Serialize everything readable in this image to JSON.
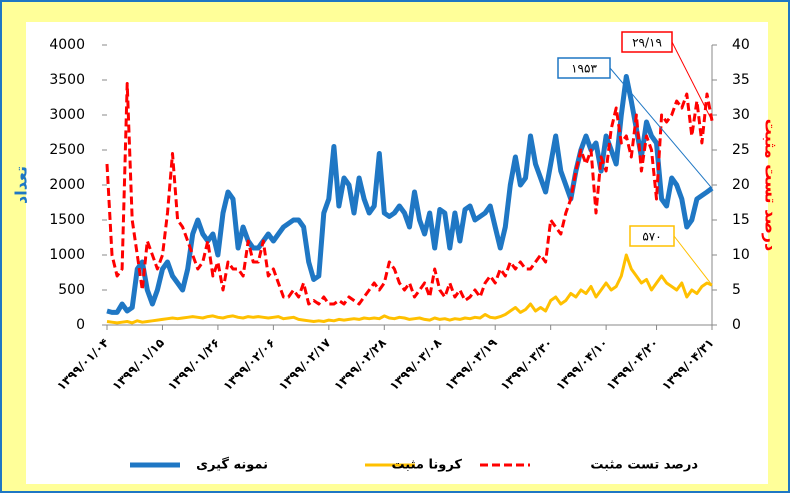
{
  "chart_data": {
    "type": "line",
    "y_label": "تعداد",
    "y2_label": "درصد تست مثبت",
    "categories": [
      "۱۳۹۹/۰۱/۰۴",
      null,
      null,
      null,
      null,
      null,
      null,
      null,
      null,
      null,
      null,
      "۱۳۹۹/۰۱/۱۵",
      null,
      null,
      null,
      null,
      null,
      null,
      null,
      null,
      null,
      null,
      "۱۳۹۹/۰۱/۲۶",
      null,
      null,
      null,
      null,
      null,
      null,
      null,
      null,
      null,
      null,
      "۱۳۹۹/۰۲/۰۶",
      null,
      null,
      null,
      null,
      null,
      null,
      null,
      null,
      null,
      null,
      "۱۳۹۹/۰۲/۱۷",
      null,
      null,
      null,
      null,
      null,
      null,
      null,
      null,
      null,
      null,
      "۱۳۹۹/۰۲/۲۸",
      null,
      null,
      null,
      null,
      null,
      null,
      null,
      null,
      null,
      null,
      "۱۳۹۹/۰۳/۰۸",
      null,
      null,
      null,
      null,
      null,
      null,
      null,
      null,
      null,
      null,
      "۱۳۹۹/۰۳/۱۹",
      null,
      null,
      null,
      null,
      null,
      null,
      null,
      null,
      null,
      null,
      "۱۳۹۹/۰۳/۳۰",
      null,
      null,
      null,
      null,
      null,
      null,
      null,
      null,
      null,
      null,
      "۱۳۹۹/۰۴/۱۰",
      null,
      null,
      null,
      null,
      null,
      null,
      null,
      null,
      null,
      "۱۳۹۹/۰۴/۲۰",
      null,
      null,
      null,
      null,
      null,
      null,
      null,
      null,
      null,
      null,
      "۱۳۹۹/۰۴/۳۱"
    ],
    "series": [
      {
        "name": "نمونه گیری",
        "color": "#1f77c4",
        "width": 5,
        "dash": false,
        "values": [
          200,
          180,
          180,
          300,
          200,
          250,
          800,
          900,
          500,
          300,
          500,
          800,
          900,
          700,
          600,
          500,
          800,
          1300,
          1500,
          1300,
          1200,
          1300,
          1000,
          1600,
          1900,
          1800,
          1100,
          1400,
          1200,
          1100,
          1100,
          1200,
          1300,
          1200,
          1300,
          1400,
          1450,
          1500,
          1500,
          1400,
          900,
          650,
          700,
          1600,
          1800,
          2550,
          1700,
          2100,
          2000,
          1600,
          2100,
          1800,
          1600,
          1700,
          2450,
          1600,
          1550,
          1600,
          1700,
          1600,
          1400,
          1900,
          1500,
          1300,
          1600,
          1100,
          1650,
          1600,
          1100,
          1600,
          1200,
          1650,
          1700,
          1500,
          1550,
          1600,
          1700,
          1400,
          1100,
          1400,
          2000,
          2400,
          2000,
          2100,
          2700,
          2300,
          2100,
          1900,
          2300,
          2700,
          2200,
          2000,
          1800,
          2200,
          2500,
          2700,
          2500,
          2600,
          2200,
          2700,
          2500,
          2300,
          3000,
          3550,
          3200,
          2800,
          2400,
          2900,
          2700,
          2600,
          1800,
          1700,
          2100,
          2000,
          1800,
          1400,
          1500,
          1800,
          1850,
          1900,
          1953
        ]
      },
      {
        "name": "کرونا مثبت",
        "color": "#ffc000",
        "width": 3,
        "dash": false,
        "values": [
          50,
          40,
          30,
          40,
          50,
          30,
          60,
          40,
          50,
          60,
          70,
          80,
          90,
          100,
          90,
          100,
          110,
          120,
          110,
          100,
          120,
          130,
          110,
          100,
          120,
          130,
          110,
          100,
          120,
          110,
          120,
          110,
          100,
          110,
          120,
          90,
          100,
          110,
          80,
          70,
          60,
          50,
          60,
          50,
          70,
          60,
          80,
          70,
          80,
          90,
          80,
          100,
          90,
          100,
          90,
          130,
          100,
          90,
          110,
          100,
          80,
          90,
          100,
          80,
          70,
          100,
          80,
          90,
          70,
          90,
          80,
          100,
          90,
          110,
          100,
          150,
          110,
          100,
          120,
          150,
          200,
          250,
          180,
          220,
          300,
          200,
          250,
          200,
          350,
          400,
          300,
          350,
          450,
          400,
          500,
          450,
          550,
          400,
          500,
          600,
          500,
          550,
          700,
          1000,
          800,
          700,
          600,
          650,
          500,
          600,
          700,
          600,
          550,
          500,
          600,
          400,
          500,
          450,
          550,
          600,
          570
        ]
      },
      {
        "name": "درصد تست مثبت",
        "color": "#ff0000",
        "width": 3,
        "dash": true,
        "axis": "y2",
        "values": [
          23,
          10,
          7,
          8,
          34.5,
          15,
          10,
          5,
          12,
          10,
          8,
          10,
          16,
          24.5,
          15,
          14,
          12,
          10,
          8,
          9,
          12,
          7,
          9,
          5,
          9,
          8,
          8,
          7,
          12,
          9,
          9,
          12,
          7,
          8,
          6,
          4,
          4,
          5,
          4,
          6,
          3,
          3.5,
          3,
          4,
          3,
          3,
          3.5,
          3,
          4,
          3.5,
          3,
          4,
          5,
          6,
          5,
          6,
          9,
          8,
          6,
          5,
          6,
          4,
          5,
          6,
          4,
          8,
          5,
          4,
          6,
          4,
          5,
          3.5,
          4,
          5,
          4,
          6,
          7,
          6,
          8,
          7,
          9,
          8,
          9,
          8,
          8,
          9,
          10,
          9,
          15,
          14,
          13,
          16,
          18,
          22,
          25,
          23,
          25,
          16,
          24,
          22,
          28,
          31,
          26,
          27,
          24,
          30,
          22,
          27,
          25,
          18,
          30,
          29,
          30,
          32,
          31,
          33,
          27,
          32,
          26,
          33,
          29.19
        ]
      }
    ],
    "ylim": [
      0,
      4000
    ],
    "yticks": [
      0,
      500,
      1000,
      1500,
      2000,
      2500,
      3000,
      3500,
      4000
    ],
    "y2lim": [
      0,
      40
    ],
    "y2ticks": [
      0,
      5,
      10,
      15,
      20,
      25,
      30,
      35,
      40
    ],
    "annotations": [
      {
        "text": "۱۹۵۳"
      },
      {
        "text": "۲۹/۱۹"
      },
      {
        "text": "۵۷۰"
      }
    ]
  }
}
